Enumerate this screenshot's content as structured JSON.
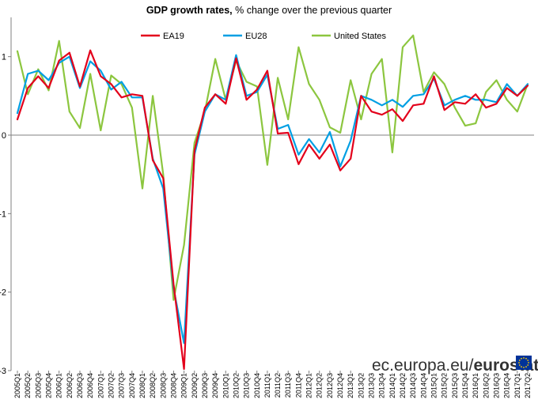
{
  "chart_data": {
    "type": "line",
    "title_bold": "GDP growth rates,",
    "title_rest": " % change over the previous quarter",
    "xlabel": "",
    "ylabel": "",
    "ylim": [
      -3,
      1.5
    ],
    "y_ticks": [
      -3,
      -2,
      -1,
      0,
      1
    ],
    "grid": false,
    "legend_position": "top-center",
    "categories": [
      "2005Q1",
      "2005Q2",
      "2005Q3",
      "2005Q4",
      "2006Q1",
      "2006Q2",
      "2006Q3",
      "2006Q4",
      "2007Q1",
      "2007Q2",
      "2007Q3",
      "2007Q4",
      "2008Q1",
      "2008Q2",
      "2008Q3",
      "2008Q4",
      "2009Q1",
      "2009Q2",
      "2009Q3",
      "2009Q4",
      "2010Q1",
      "2010Q2",
      "2010Q3",
      "2010Q4",
      "2011Q1",
      "2011Q2",
      "2011Q3",
      "2011Q4",
      "2012Q1",
      "2012Q2",
      "2012Q3",
      "2012Q4",
      "2013Q1",
      "2013Q2",
      "2013Q3",
      "2013Q4",
      "2014Q1",
      "2014Q2",
      "2014Q3",
      "2014Q4",
      "2015Q1",
      "2015Q2",
      "2015Q3",
      "2015Q4",
      "2016Q1",
      "2016Q2",
      "2016Q3",
      "2016Q4",
      "2017Q1",
      "2017Q2"
    ],
    "series": [
      {
        "name": "EA19",
        "color": "#e3001b",
        "values": [
          0.2,
          0.6,
          0.75,
          0.6,
          0.95,
          1.05,
          0.62,
          1.08,
          0.75,
          0.65,
          0.48,
          0.52,
          0.5,
          -0.32,
          -0.55,
          -1.9,
          -2.98,
          -0.2,
          0.35,
          0.52,
          0.4,
          0.98,
          0.45,
          0.58,
          0.82,
          0.02,
          0.03,
          -0.37,
          -0.12,
          -0.3,
          -0.12,
          -0.45,
          -0.3,
          0.5,
          0.3,
          0.26,
          0.33,
          0.18,
          0.38,
          0.4,
          0.75,
          0.32,
          0.42,
          0.4,
          0.52,
          0.35,
          0.4,
          0.6,
          0.5,
          0.63
        ]
      },
      {
        "name": "EU28",
        "color": "#009fe3",
        "values": [
          0.28,
          0.78,
          0.82,
          0.7,
          0.92,
          1.0,
          0.6,
          0.94,
          0.82,
          0.58,
          0.68,
          0.48,
          0.48,
          -0.3,
          -0.68,
          -1.95,
          -2.65,
          -0.25,
          0.3,
          0.52,
          0.45,
          1.02,
          0.5,
          0.55,
          0.77,
          0.08,
          0.13,
          -0.25,
          -0.05,
          -0.22,
          0.04,
          -0.4,
          -0.07,
          0.5,
          0.45,
          0.38,
          0.45,
          0.36,
          0.5,
          0.52,
          0.72,
          0.38,
          0.45,
          0.5,
          0.45,
          0.45,
          0.42,
          0.65,
          0.5,
          0.65
        ]
      },
      {
        "name": "United States",
        "color": "#8cc63f",
        "values": [
          1.07,
          0.52,
          0.84,
          0.57,
          1.2,
          0.3,
          0.09,
          0.78,
          0.06,
          0.76,
          0.65,
          0.35,
          -0.68,
          0.5,
          -0.5,
          -2.1,
          -1.4,
          -0.1,
          0.3,
          0.97,
          0.45,
          0.95,
          0.68,
          0.62,
          -0.38,
          0.73,
          0.2,
          1.12,
          0.65,
          0.45,
          0.1,
          0.03,
          0.7,
          0.2,
          0.78,
          0.97,
          -0.22,
          1.12,
          1.27,
          0.55,
          0.8,
          0.65,
          0.35,
          0.12,
          0.15,
          0.55,
          0.7,
          0.45,
          0.3,
          0.65
        ]
      }
    ]
  },
  "branding": {
    "domain_text": "ec.europa.eu/",
    "brand_text": "eurostat",
    "flag_color": "#003399",
    "star_color": "#ffcc00"
  }
}
